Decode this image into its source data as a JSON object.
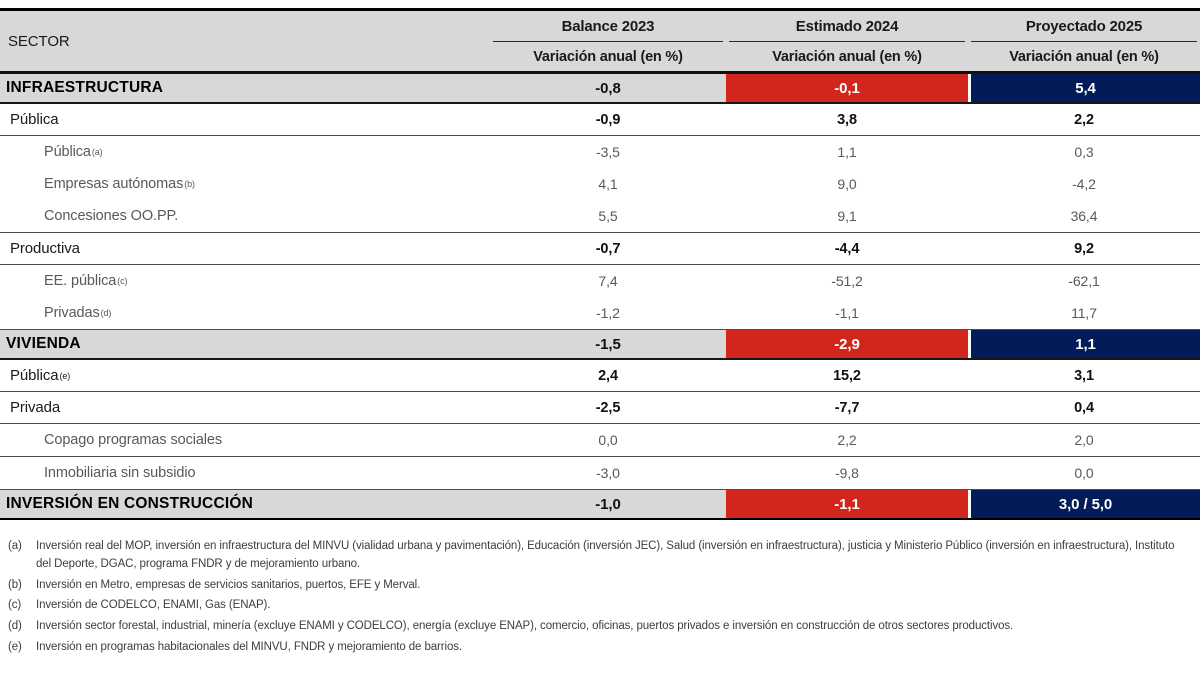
{
  "table": {
    "sector_header": "SECTOR",
    "columns": [
      {
        "year": "Balance 2023",
        "sub": "Variación anual (en %)"
      },
      {
        "year": "Estimado 2024",
        "sub": "Variación anual (en %)"
      },
      {
        "year": "Proyectado 2025",
        "sub": "Variación anual (en %)"
      }
    ],
    "rows": [
      {
        "label": "INFRAESTRUCTURA",
        "sup": "",
        "level": 0,
        "border": "med",
        "values": [
          "-0,8",
          "-0,1",
          "5,4"
        ]
      },
      {
        "label": "Pública",
        "sup": "",
        "level": 1,
        "border": "thin",
        "values": [
          "-0,9",
          "3,8",
          "2,2"
        ]
      },
      {
        "label": "Pública",
        "sup": "(a)",
        "level": 2,
        "border": "none",
        "values": [
          "-3,5",
          "1,1",
          "0,3"
        ]
      },
      {
        "label": "Empresas autónomas",
        "sup": "(b)",
        "level": 2,
        "border": "none",
        "values": [
          "4,1",
          "9,0",
          "-4,2"
        ]
      },
      {
        "label": "Concesiones OO.PP.",
        "sup": "",
        "level": 2,
        "border": "thin",
        "values": [
          "5,5",
          "9,1",
          "36,4"
        ]
      },
      {
        "label": "Productiva",
        "sup": "",
        "level": 1,
        "border": "thin",
        "values": [
          "-0,7",
          "-4,4",
          "9,2"
        ]
      },
      {
        "label": "EE. pública",
        "sup": "(c)",
        "level": 2,
        "border": "none",
        "values": [
          "7,4",
          "-51,2",
          "-62,1"
        ]
      },
      {
        "label": "Privadas",
        "sup": "(d)",
        "level": 2,
        "border": "thin",
        "values": [
          "-1,2",
          "-1,1",
          "11,7"
        ]
      },
      {
        "label": "VIVIENDA",
        "sup": "",
        "level": 0,
        "border": "med",
        "values": [
          "-1,5",
          "-2,9",
          "1,1"
        ]
      },
      {
        "label": "Pública",
        "sup": "(e)",
        "level": 1,
        "border": "thin",
        "values": [
          "2,4",
          "15,2",
          "3,1"
        ]
      },
      {
        "label": "Privada",
        "sup": "",
        "level": 1,
        "border": "thin",
        "values": [
          "-2,5",
          "-7,7",
          "0,4"
        ]
      },
      {
        "label": "Copago programas sociales",
        "sup": "",
        "level": 2,
        "border": "thin",
        "values": [
          "0,0",
          "2,2",
          "2,0"
        ]
      },
      {
        "label": "Inmobiliaria sin subsidio",
        "sup": "",
        "level": 2,
        "border": "thin",
        "values": [
          "-3,0",
          "-9,8",
          "0,0"
        ]
      },
      {
        "label": "INVERSIÓN EN CONSTRUCCIÓN",
        "sup": "",
        "level": 0,
        "border": "thick",
        "values": [
          "-1,0",
          "-1,1",
          "3,0 / 5,0"
        ]
      }
    ],
    "value_column_keys": [
      "balance-2023",
      "estimado-2024",
      "proyectado-2025"
    ]
  },
  "footnotes": [
    {
      "marker": "(a)",
      "text": "Inversión real del MOP, inversión en infraestructura del MINVU (vialidad urbana y pavimentación), Educación (inversión JEC), Salud (inversión en infraestructura), justicia y Ministerio Público (inversión en infraestructura), Instituto del Deporte, DGAC, programa FNDR y de mejoramiento urbano."
    },
    {
      "marker": "(b)",
      "text": "Inversión en Metro, empresas de servicios sanitarios, puertos, EFE y Merval."
    },
    {
      "marker": "(c)",
      "text": "Inversión de CODELCO, ENAMI, Gas (ENAP)."
    },
    {
      "marker": "(d)",
      "text": "Inversión sector forestal, industrial, minería (excluye ENAMI y CODELCO), energía (excluye ENAP), comercio, oficinas, puertos privados e inversión en construcción de otros sectores productivos."
    },
    {
      "marker": "(e)",
      "text": "Inversión en programas habitacionales del MINVU, FNDR y mejoramiento de barrios."
    }
  ],
  "colors": {
    "header_gray": "#d8d8d8",
    "band_gray": "#d8d8d8",
    "estimado_red": "#d2261c",
    "proyectado_navy": "#021b59"
  }
}
